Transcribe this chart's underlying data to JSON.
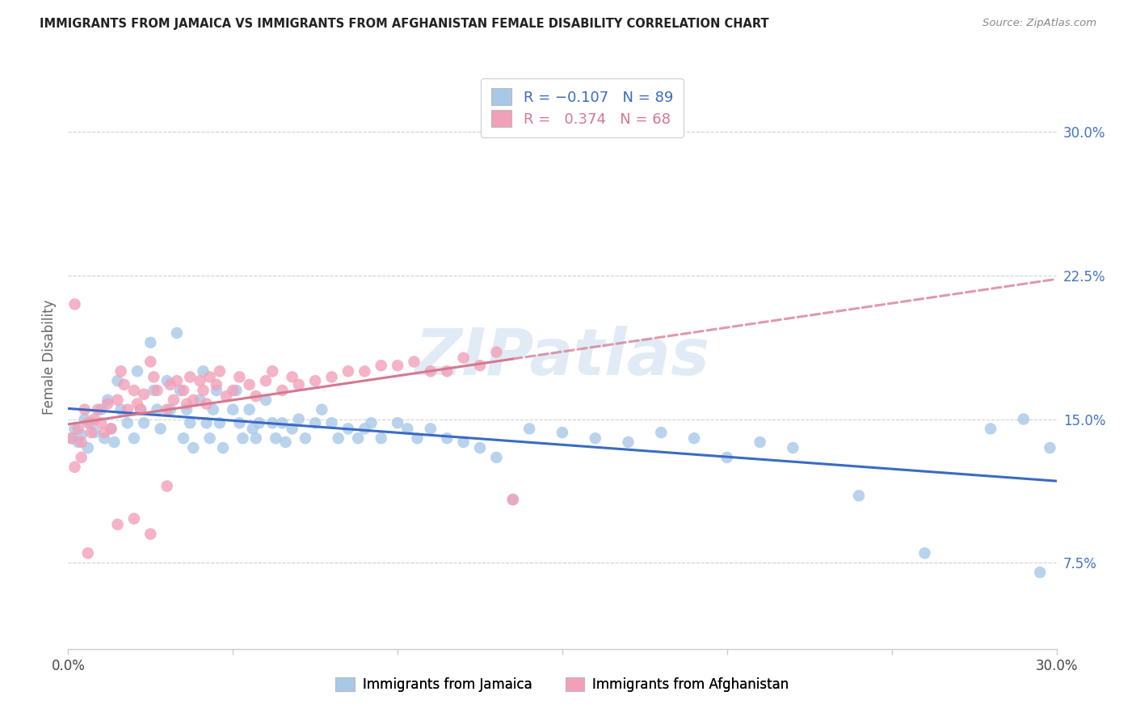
{
  "title": "IMMIGRANTS FROM JAMAICA VS IMMIGRANTS FROM AFGHANISTAN FEMALE DISABILITY CORRELATION CHART",
  "source": "Source: ZipAtlas.com",
  "ylabel": "Female Disability",
  "y_ticks": [
    0.075,
    0.15,
    0.225,
    0.3
  ],
  "y_tick_labels": [
    "7.5%",
    "15.0%",
    "22.5%",
    "30.0%"
  ],
  "xmin": 0.0,
  "xmax": 0.3,
  "ymin": 0.03,
  "ymax": 0.335,
  "color_jamaica": "#a8c8e8",
  "color_afghanistan": "#f2a0b8",
  "color_jamaica_line": "#3a6bc4",
  "color_afghanistan_line": "#d47890",
  "label_jamaica": "Immigrants from Jamaica",
  "label_afghanistan": "Immigrants from Afghanistan",
  "jamaica_x": [
    0.001,
    0.002,
    0.003,
    0.004,
    0.005,
    0.006,
    0.007,
    0.008,
    0.01,
    0.011,
    0.012,
    0.013,
    0.014,
    0.015,
    0.016,
    0.018,
    0.02,
    0.021,
    0.022,
    0.023,
    0.025,
    0.026,
    0.027,
    0.028,
    0.03,
    0.031,
    0.033,
    0.034,
    0.035,
    0.036,
    0.037,
    0.038,
    0.04,
    0.041,
    0.042,
    0.043,
    0.044,
    0.045,
    0.046,
    0.047,
    0.05,
    0.051,
    0.052,
    0.053,
    0.055,
    0.056,
    0.057,
    0.058,
    0.06,
    0.062,
    0.063,
    0.065,
    0.066,
    0.068,
    0.07,
    0.072,
    0.075,
    0.077,
    0.08,
    0.082,
    0.085,
    0.088,
    0.09,
    0.092,
    0.095,
    0.1,
    0.103,
    0.106,
    0.11,
    0.115,
    0.12,
    0.125,
    0.13,
    0.135,
    0.14,
    0.15,
    0.16,
    0.17,
    0.18,
    0.19,
    0.2,
    0.21,
    0.22,
    0.24,
    0.26,
    0.28,
    0.29,
    0.295,
    0.298
  ],
  "jamaica_y": [
    0.14,
    0.145,
    0.138,
    0.142,
    0.15,
    0.135,
    0.148,
    0.143,
    0.155,
    0.14,
    0.16,
    0.145,
    0.138,
    0.17,
    0.155,
    0.148,
    0.14,
    0.175,
    0.155,
    0.148,
    0.19,
    0.165,
    0.155,
    0.145,
    0.17,
    0.155,
    0.195,
    0.165,
    0.14,
    0.155,
    0.148,
    0.135,
    0.16,
    0.175,
    0.148,
    0.14,
    0.155,
    0.165,
    0.148,
    0.135,
    0.155,
    0.165,
    0.148,
    0.14,
    0.155,
    0.145,
    0.14,
    0.148,
    0.16,
    0.148,
    0.14,
    0.148,
    0.138,
    0.145,
    0.15,
    0.14,
    0.148,
    0.155,
    0.148,
    0.14,
    0.145,
    0.14,
    0.145,
    0.148,
    0.14,
    0.148,
    0.145,
    0.14,
    0.145,
    0.14,
    0.138,
    0.135,
    0.13,
    0.108,
    0.145,
    0.143,
    0.14,
    0.138,
    0.143,
    0.14,
    0.13,
    0.138,
    0.135,
    0.11,
    0.08,
    0.145,
    0.15,
    0.07,
    0.135
  ],
  "afghanistan_x": [
    0.001,
    0.002,
    0.003,
    0.004,
    0.005,
    0.006,
    0.007,
    0.008,
    0.009,
    0.01,
    0.011,
    0.012,
    0.013,
    0.015,
    0.016,
    0.017,
    0.018,
    0.02,
    0.021,
    0.022,
    0.023,
    0.025,
    0.026,
    0.027,
    0.03,
    0.031,
    0.032,
    0.033,
    0.035,
    0.036,
    0.037,
    0.038,
    0.04,
    0.041,
    0.042,
    0.043,
    0.045,
    0.046,
    0.048,
    0.05,
    0.052,
    0.055,
    0.057,
    0.06,
    0.062,
    0.065,
    0.068,
    0.07,
    0.075,
    0.08,
    0.085,
    0.09,
    0.095,
    0.1,
    0.105,
    0.11,
    0.115,
    0.12,
    0.125,
    0.13,
    0.135,
    0.002,
    0.004,
    0.006,
    0.015,
    0.02,
    0.025,
    0.03
  ],
  "afghanistan_y": [
    0.14,
    0.21,
    0.145,
    0.138,
    0.155,
    0.148,
    0.143,
    0.15,
    0.155,
    0.148,
    0.143,
    0.158,
    0.145,
    0.16,
    0.175,
    0.168,
    0.155,
    0.165,
    0.158,
    0.155,
    0.163,
    0.18,
    0.172,
    0.165,
    0.155,
    0.168,
    0.16,
    0.17,
    0.165,
    0.158,
    0.172,
    0.16,
    0.17,
    0.165,
    0.158,
    0.172,
    0.168,
    0.175,
    0.162,
    0.165,
    0.172,
    0.168,
    0.162,
    0.17,
    0.175,
    0.165,
    0.172,
    0.168,
    0.17,
    0.172,
    0.175,
    0.175,
    0.178,
    0.178,
    0.18,
    0.175,
    0.175,
    0.182,
    0.178,
    0.185,
    0.108,
    0.125,
    0.13,
    0.08,
    0.095,
    0.098,
    0.09,
    0.115
  ],
  "watermark_text": "ZIPatlas",
  "background_color": "#ffffff",
  "grid_color": "#cccccc"
}
